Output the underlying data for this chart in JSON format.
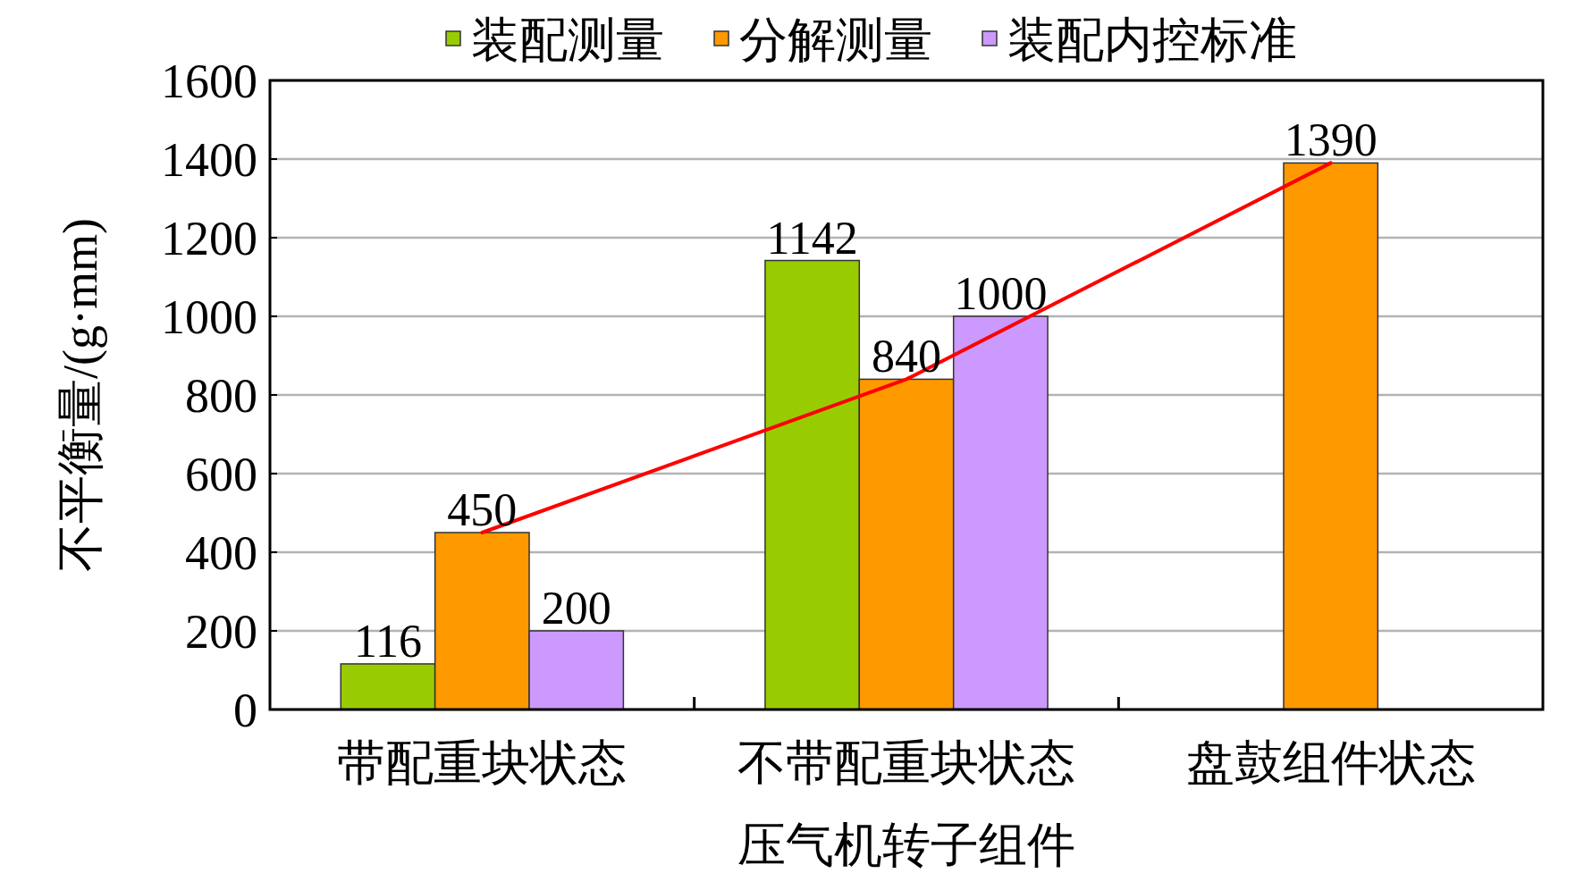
{
  "chart_data": {
    "type": "bar",
    "xlabel": "压气机转子组件",
    "ylabel": "不平衡量/(g·mm)",
    "categories": [
      "带配重块状态",
      "不带配重块状态",
      "盘鼓组件状态"
    ],
    "series": [
      {
        "name": "装配测量",
        "color": "#99cc00",
        "values": [
          116,
          1142,
          null
        ],
        "value_labels": [
          "116",
          "1142",
          null
        ]
      },
      {
        "name": "分解测量",
        "color": "#ff9900",
        "values": [
          450,
          840,
          1390
        ],
        "value_labels": [
          "450",
          "840",
          "1390"
        ]
      },
      {
        "name": "装配内控标准",
        "color": "#cc99ff",
        "values": [
          200,
          1000,
          null
        ],
        "value_labels": [
          "200",
          "1000",
          null
        ]
      },
      {
        "type": "line",
        "color": "#ff0000",
        "values": [
          450,
          840,
          1390
        ]
      }
    ],
    "ylim": [
      0,
      1600
    ],
    "yticks": [
      0,
      200,
      400,
      600,
      800,
      1000,
      1200,
      1400,
      1600
    ],
    "grid": "y",
    "legend": "top"
  }
}
